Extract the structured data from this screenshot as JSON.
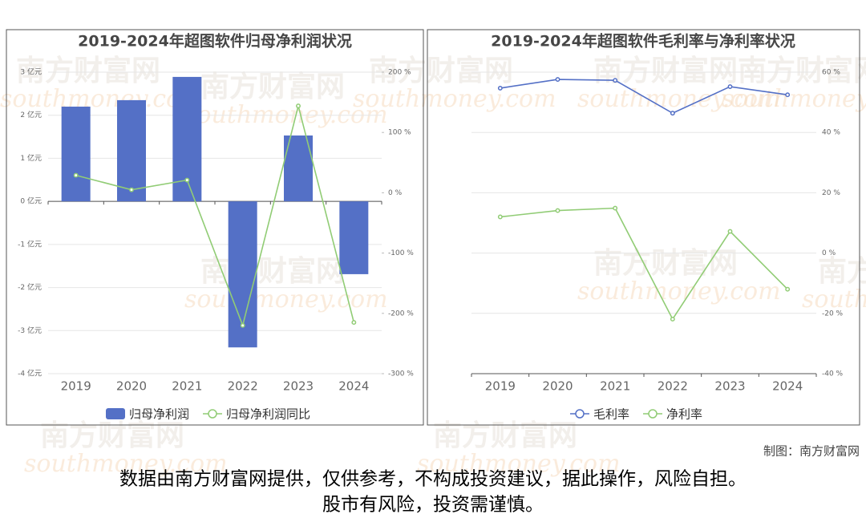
{
  "watermark": [
    "南方财富网",
    "southmoney.com"
  ],
  "chart_data": [
    {
      "type": "bar_line",
      "title": "2019-2024年超图软件归母净利润状况",
      "categories": [
        "2019",
        "2020",
        "2021",
        "2022",
        "2023",
        "2024"
      ],
      "series": [
        {
          "name": "归母净利润",
          "type": "bar",
          "color": "#5470c6",
          "values": [
            2.2,
            2.35,
            2.89,
            -3.39,
            1.53,
            -1.69
          ]
        },
        {
          "name": "归母净利润同比",
          "type": "line",
          "color": "#91cc75",
          "axis": "y2",
          "values": [
            29,
            5,
            21,
            -220,
            144,
            -215
          ]
        }
      ],
      "ylim": [
        -4,
        3
      ],
      "yticks": [
        {
          "value": -4,
          "label": "-4 亿元"
        },
        {
          "value": -3,
          "label": "-3 亿元"
        },
        {
          "value": -2,
          "label": "-2 亿元"
        },
        {
          "value": -1,
          "label": "-1 亿元"
        },
        {
          "value": 0,
          "label": "0 亿元"
        },
        {
          "value": 1,
          "label": "1 亿元"
        },
        {
          "value": 2,
          "label": "2 亿元"
        },
        {
          "value": 3,
          "label": "3 亿元"
        }
      ],
      "y2lim": [
        -300,
        200
      ],
      "y2ticks": [
        {
          "value": -300,
          "label": "-300 %"
        },
        {
          "value": -200,
          "label": "-200 %"
        },
        {
          "value": -100,
          "label": "-100 %"
        },
        {
          "value": 0,
          "label": "0 %"
        },
        {
          "value": 100,
          "label": "100 %"
        },
        {
          "value": 200,
          "label": "200 %"
        }
      ],
      "grid": true,
      "legend": "bottom"
    },
    {
      "type": "line",
      "title": "2019-2024年超图软件毛利率与净利率状况",
      "categories": [
        "2019",
        "2020",
        "2021",
        "2022",
        "2023",
        "2024"
      ],
      "series": [
        {
          "name": "毛利率",
          "type": "line",
          "color": "#5470c6",
          "values": [
            54.7,
            57.6,
            57.3,
            46.4,
            55.2,
            52.5
          ]
        },
        {
          "name": "净利率",
          "type": "line",
          "color": "#91cc75",
          "values": [
            12.0,
            14.1,
            14.9,
            -21.9,
            7.2,
            -12.0
          ]
        }
      ],
      "ylim": [
        -40,
        60
      ],
      "yticks": [
        {
          "value": -40,
          "label": "-40 %"
        },
        {
          "value": -20,
          "label": "-20 %"
        },
        {
          "value": 0,
          "label": "0 %"
        },
        {
          "value": 20,
          "label": "20 %"
        },
        {
          "value": 40,
          "label": "40 %"
        },
        {
          "value": 60,
          "label": "60 %"
        }
      ],
      "y_axis_side": "right",
      "grid": true,
      "legend": "bottom"
    }
  ],
  "credit": "制图：南方财富网",
  "disclaimer": [
    "数据由南方财富网提供，仅供参考，不构成投资建议，据此操作，风险自担。",
    "股市有风险，投资需谨慎。"
  ]
}
